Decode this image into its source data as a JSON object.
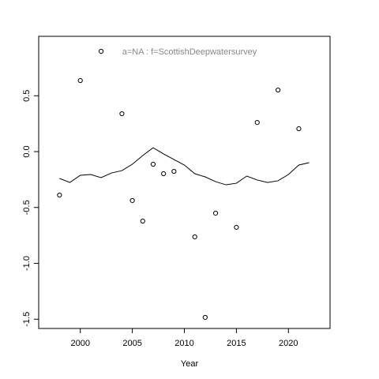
{
  "chart_data": {
    "type": "scatter",
    "title": "a=NA  :  f=ScottishDeepwatersurvey",
    "xlabel": "Year",
    "xlim": [
      1996,
      2024
    ],
    "ylim": [
      -1.583,
      1.032
    ],
    "xticks": [
      2000,
      2005,
      2010,
      2015,
      2020
    ],
    "yticks": [
      0.5,
      {
        "value": 0,
        "label": "0.0"
      },
      -0.5,
      {
        "value": -1,
        "label": "-1.0"
      },
      -1.5
    ],
    "series": [
      {
        "type": "points",
        "color": "#000000",
        "x": [
          1998,
          2000,
          2002,
          2004,
          2005,
          2006,
          2007,
          2008,
          2009,
          2011,
          2012,
          2013,
          2015,
          2017,
          2019,
          2021
        ],
        "values": [
          -0.389,
          0.636,
          0.898,
          0.339,
          -0.438,
          -0.622,
          -0.113,
          -0.198,
          -0.177,
          -0.763,
          -1.484,
          -0.551,
          -0.678,
          0.261,
          0.551,
          0.205
        ]
      },
      {
        "type": "line",
        "color": "#000000",
        "x": [
          1998,
          1999,
          2000,
          2001,
          2002,
          2003,
          2004,
          2005,
          2006,
          2007,
          2008,
          2009,
          2010,
          2011,
          2012,
          2013,
          2014,
          2015,
          2016,
          2017,
          2018,
          2019,
          2020,
          2021,
          2022
        ],
        "values": [
          -0.24,
          -0.276,
          -0.212,
          -0.205,
          -0.233,
          -0.191,
          -0.17,
          -0.113,
          -0.035,
          0.035,
          -0.021,
          -0.071,
          -0.12,
          -0.198,
          -0.226,
          -0.269,
          -0.297,
          -0.283,
          -0.219,
          -0.254,
          -0.276,
          -0.261,
          -0.205,
          -0.12,
          -0.099
        ]
      }
    ]
  }
}
